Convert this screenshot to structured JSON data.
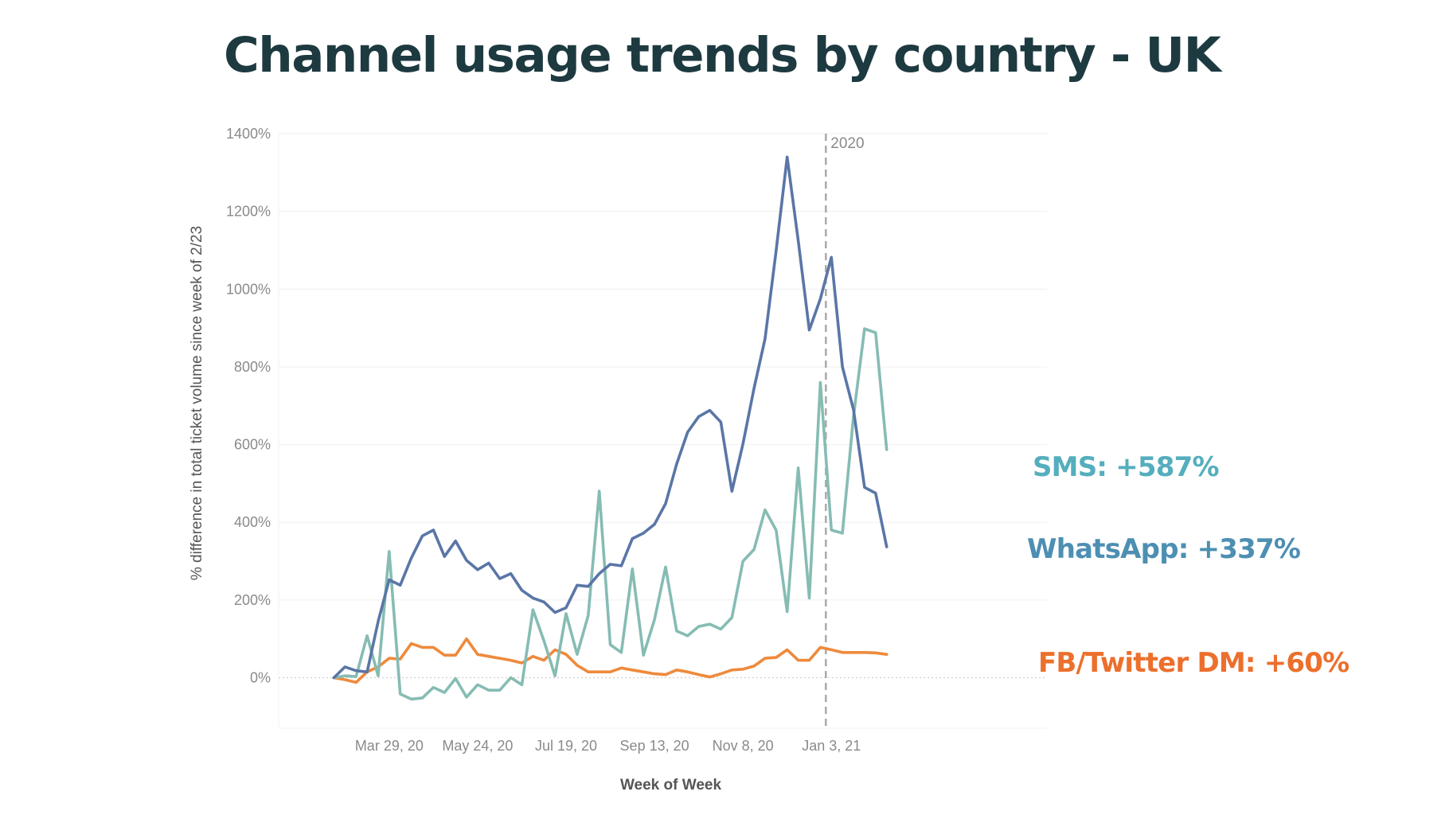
{
  "title": "Channel usage trends by country - UK",
  "colors": {
    "whatsapp": "#5a76a7",
    "sms": "#86bcb3",
    "fb": "#ee8a3c",
    "sms_label": "#55aebd",
    "whatsapp_label": "#4d8fb3",
    "fb_label": "#ec6f2c"
  },
  "chart_data": {
    "type": "line",
    "xlabel": "Week of Week",
    "ylabel": "% difference in total ticket volume since week of 2/23",
    "ylim": [
      -130,
      1400
    ],
    "yticks": [
      0,
      200,
      400,
      600,
      800,
      1000,
      1200,
      1400
    ],
    "ytick_labels": [
      "0%",
      "200%",
      "400%",
      "600%",
      "800%",
      "1000%",
      "1200%",
      "1400%"
    ],
    "xrange": [
      -5,
      64.5
    ],
    "xticks": [
      {
        "x": 5,
        "label": "Mar 29, 20"
      },
      {
        "x": 13,
        "label": "May 24, 20"
      },
      {
        "x": 21,
        "label": "Jul 19, 20"
      },
      {
        "x": 29,
        "label": "Sep 13, 20"
      },
      {
        "x": 37,
        "label": "Nov 8, 20"
      },
      {
        "x": 45,
        "label": "Jan 3, 21"
      }
    ],
    "reference_line": {
      "x": 44.5,
      "label": "2020"
    },
    "series": [
      {
        "key": "whatsapp",
        "name": "WhatsApp: +337%",
        "values": [
          0,
          28,
          18,
          15,
          145,
          252,
          238,
          308,
          365,
          380,
          312,
          352,
          302,
          278,
          295,
          255,
          268,
          225,
          205,
          195,
          168,
          180,
          238,
          235,
          268,
          292,
          288,
          358,
          372,
          395,
          448,
          550,
          632,
          672,
          688,
          658,
          480,
          602,
          745,
          872,
          1098,
          1340,
          1125,
          895,
          975,
          1082,
          800,
          690,
          490,
          475,
          337
        ]
      },
      {
        "key": "sms",
        "name": "SMS: +587%",
        "values": [
          0,
          5,
          3,
          108,
          5,
          325,
          -42,
          -55,
          -52,
          -25,
          -38,
          -2,
          -50,
          -18,
          -32,
          -32,
          0,
          -18,
          175,
          95,
          5,
          165,
          60,
          160,
          480,
          85,
          65,
          280,
          58,
          150,
          285,
          120,
          108,
          132,
          138,
          125,
          155,
          300,
          330,
          432,
          380,
          170,
          540,
          205,
          760,
          380,
          372,
          672,
          898,
          888,
          587
        ]
      },
      {
        "key": "fb",
        "name": "FB/Twitter DM: +60%",
        "values": [
          0,
          -5,
          -12,
          15,
          28,
          50,
          48,
          88,
          78,
          78,
          58,
          58,
          100,
          60,
          55,
          50,
          45,
          38,
          55,
          45,
          72,
          60,
          32,
          15,
          15,
          15,
          25,
          20,
          15,
          10,
          8,
          20,
          15,
          8,
          2,
          10,
          20,
          22,
          30,
          50,
          52,
          72,
          45,
          45,
          78,
          72,
          65,
          65,
          65,
          64,
          60
        ]
      }
    ]
  }
}
